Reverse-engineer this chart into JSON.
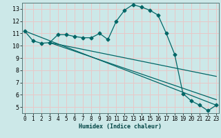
{
  "title": "",
  "xlabel": "Humidex (Indice chaleur)",
  "ylabel": "",
  "bg_color": "#cce8e8",
  "line_color": "#006666",
  "grid_color": "#e8c8c8",
  "x_ticks": [
    0,
    1,
    2,
    3,
    4,
    5,
    6,
    7,
    8,
    9,
    10,
    11,
    12,
    13,
    14,
    15,
    16,
    17,
    18,
    19,
    20,
    21,
    22,
    23
  ],
  "y_ticks": [
    5,
    6,
    7,
    8,
    9,
    10,
    11,
    12,
    13
  ],
  "xlim": [
    -0.3,
    23.3
  ],
  "ylim": [
    4.5,
    13.5
  ],
  "main_series_x": [
    0,
    1,
    2,
    3,
    4,
    5,
    6,
    7,
    8,
    9,
    10,
    11,
    12,
    13,
    14,
    15,
    16,
    17,
    18,
    19,
    20,
    21,
    22,
    23
  ],
  "main_series_y": [
    11.2,
    10.4,
    10.2,
    10.25,
    10.9,
    10.9,
    10.75,
    10.65,
    10.65,
    11.0,
    10.5,
    12.0,
    12.9,
    13.35,
    13.15,
    12.9,
    12.5,
    11.0,
    9.3,
    6.1,
    5.5,
    5.15,
    4.7,
    5.15
  ],
  "line1_x": [
    0,
    23
  ],
  "line1_y": [
    11.2,
    5.15
  ],
  "line2_x": [
    3,
    23
  ],
  "line2_y": [
    10.25,
    5.6
  ],
  "line3_x": [
    3,
    23
  ],
  "line3_y": [
    10.25,
    7.5
  ]
}
